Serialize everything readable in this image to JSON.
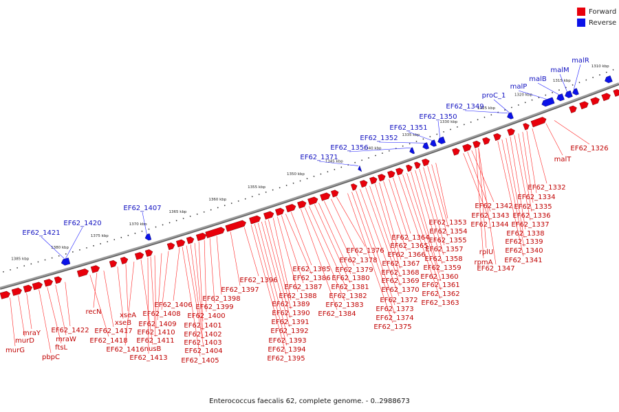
{
  "colors": {
    "forward": "#e8000b",
    "reverse": "#0b12e8",
    "label_forward": "#c00000",
    "label_reverse": "#1010c0",
    "backbone": "#888888"
  },
  "legend": [
    {
      "label": "Forward"
    },
    {
      "label": "Reverse"
    }
  ],
  "caption": "Enterococcus faecalis 62, complete genome. - 0..2988673",
  "kbp_ticks": [
    "1385 kbp",
    "1380 kbp",
    "1375 kbp",
    "1370 kbp",
    "1365 kbp",
    "1360 kbp",
    "1355 kbp",
    "1350 kbp",
    "1345 kbp",
    "1340 kbp",
    "1335 kbp",
    "1330 kbp",
    "1325 kbp",
    "1320 kbp",
    "1315 kbp",
    "1310 kbp"
  ],
  "genes_reverse": [
    "EF62_1421",
    "EF62_1420",
    "EF62_1407",
    "EF62_1371",
    "EF62_1356",
    "EF62_1352",
    "EF62_1351",
    "EF62_1350",
    "EF62_1349",
    "proC_1",
    "malP",
    "malB",
    "malM",
    "malR"
  ],
  "genes_forward": [
    "murG",
    "murD",
    "mraY",
    "pbpC",
    "ftsL",
    "mraW",
    "EF62_1422",
    "EF62_1418",
    "recN",
    "EF62_1417",
    "xseB",
    "xseA",
    "EF62_1416",
    "nusB",
    "EF62_1413",
    "EF62_1411",
    "EF62_1410",
    "EF62_1409",
    "EF62_1408",
    "EF62_1406",
    "EF62_1405",
    "EF62_1404",
    "EF62_1403",
    "EF62_1402",
    "EF62_1401",
    "EF62_1400",
    "EF62_1399",
    "EF62_1398",
    "EF62_1397",
    "EF62_1396",
    "EF62_1395",
    "EF62_1394",
    "EF62_1393",
    "EF62_1392",
    "EF62_1391",
    "EF62_1390",
    "EF62_1389",
    "EF62_1388",
    "EF62_1387",
    "EF62_1386",
    "EF62_1385",
    "EF62_1384",
    "EF62_1383",
    "EF62_1382",
    "EF62_1381",
    "EF62_1380",
    "EF62_1379",
    "EF62_1378",
    "EF62_1376",
    "EF62_1375",
    "EF62_1374",
    "EF62_1373",
    "EF62_1372",
    "EF62_1370",
    "EF62_1369",
    "EF62_1368",
    "EF62_1367",
    "EF62_1366",
    "EF62_1365",
    "EF62_1364",
    "EF62_1363",
    "EF62_1362",
    "EF62_1361",
    "EF62_1360",
    "EF62_1359",
    "EF62_1358",
    "EF62_1357",
    "EF62_1355",
    "EF62_1354",
    "EF62_1353",
    "EF62_1347",
    "rpmA",
    "rplU",
    "EF62_1344",
    "EF62_1343",
    "EF62_1342",
    "EF62_1341",
    "EF62_1340",
    "EF62_1339",
    "EF62_1338",
    "EF62_1337",
    "EF62_1336",
    "EF62_1335",
    "EF62_1334",
    "EF62_1332",
    "malT",
    "EF62_1326"
  ]
}
